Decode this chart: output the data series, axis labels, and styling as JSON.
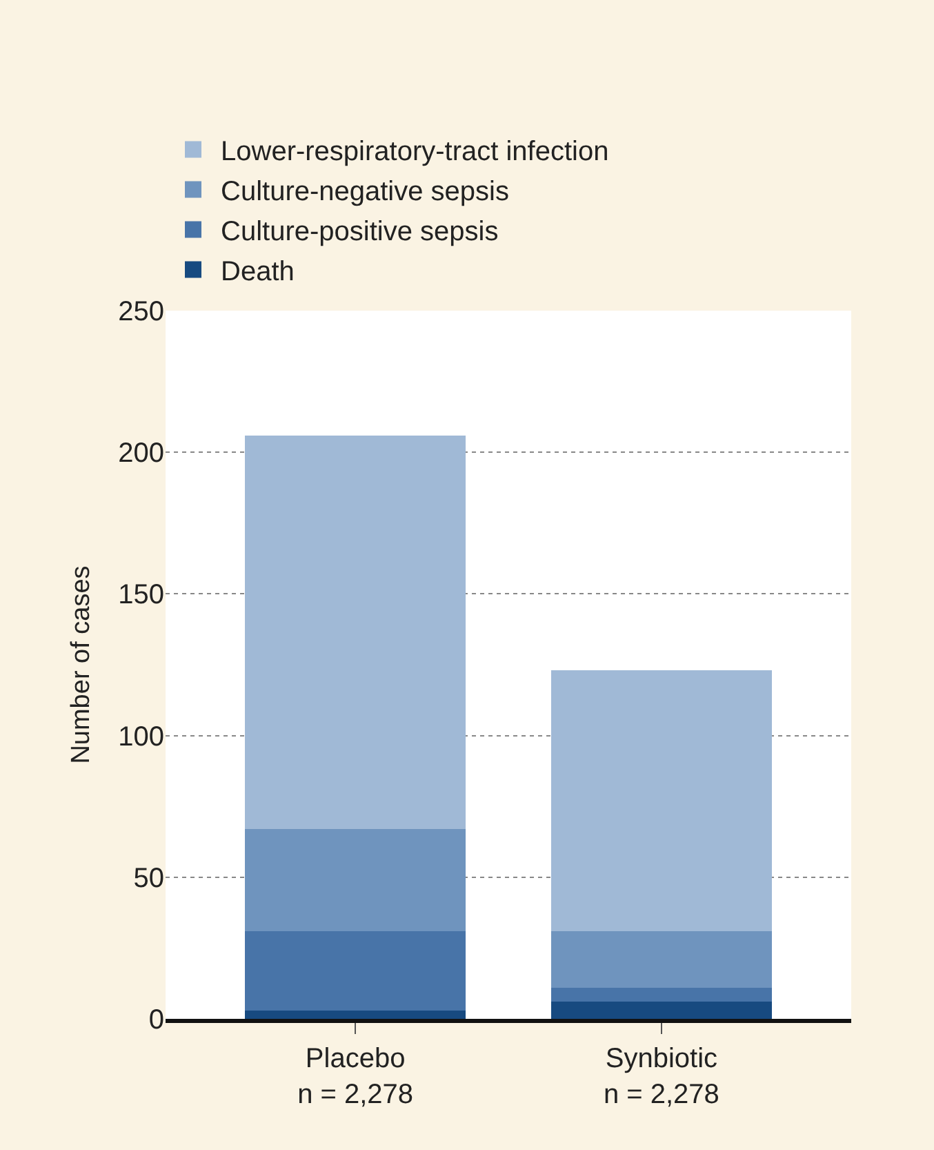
{
  "chart_data": {
    "type": "bar",
    "stacked": true,
    "ylabel": "Number of cases",
    "categories": [
      "Placebo\nn = 2,278",
      "Synbiotic\nn = 2,278"
    ],
    "series": [
      {
        "name": "Death",
        "color": "#174a80",
        "values": [
          3,
          6
        ]
      },
      {
        "name": "Culture-positive sepsis",
        "color": "#4874a8",
        "values": [
          28,
          5
        ]
      },
      {
        "name": "Culture-negative sepsis",
        "color": "#6f94be",
        "values": [
          36,
          20
        ]
      },
      {
        "name": "Lower-respiratory-tract infection",
        "color": "#a0b9d6",
        "values": [
          139,
          92
        ]
      }
    ],
    "ylim": [
      0,
      250
    ],
    "yticks": [
      0,
      50,
      100,
      150,
      200,
      250
    ],
    "grid": "y",
    "legend": "top left"
  }
}
